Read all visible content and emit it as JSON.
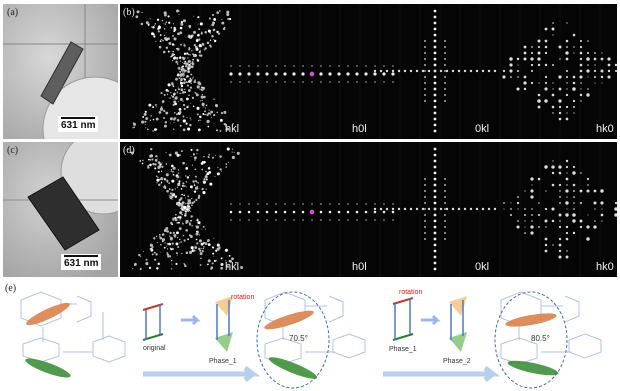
{
  "figure": {
    "panel_labels": {
      "a": "(a)",
      "b": "(b)",
      "c": "(c)",
      "d": "(d)",
      "e": "(e)"
    },
    "scale_bars": {
      "a": "631 nm",
      "c": "631 nm"
    },
    "diffraction_labels": {
      "row1": [
        "hkl",
        "h0l",
        "0kl",
        "hk0"
      ],
      "row2": [
        "hkl",
        "h0l",
        "0kl",
        "hk0"
      ]
    },
    "scheme": {
      "original": "original",
      "phase1": "Phase_1",
      "phase1_again": "Phase_1",
      "phase2": "Phase_2",
      "rotation1": "rotation",
      "rotation2": "rotation",
      "angle1": "70.5°",
      "angle2": "80.5°"
    },
    "colors": {
      "orange": "#d9824a",
      "green": "#3e8f3a",
      "blue": "#8fb3e8",
      "red": "#d42020"
    }
  }
}
